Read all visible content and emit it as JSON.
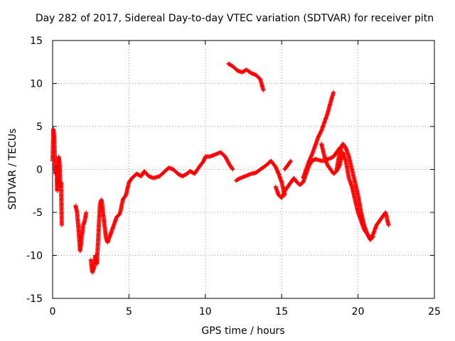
{
  "chart_data": {
    "type": "scatter",
    "title": "Day 282 of 2017, Sidereal Day-to-day VTEC variation (SDTVAR) for receiver pitn",
    "xlabel": "GPS time / hours",
    "ylabel": "SDTVAR / TECUs",
    "xlim": [
      0,
      25
    ],
    "ylim": [
      -15,
      15
    ],
    "xticks": [
      "0",
      "5",
      "10",
      "15",
      "20",
      "25"
    ],
    "yticks": [
      "-15",
      "-10",
      "-5",
      "0",
      "5",
      "10",
      "15"
    ],
    "grid": true,
    "marker": "+",
    "color": "#ff0000",
    "series": [
      {
        "x": [
          0.0,
          0.05,
          0.1,
          0.15,
          0.2,
          0.25,
          0.3,
          0.35,
          0.4,
          0.45,
          0.5,
          0.55,
          0.6
        ],
        "y": [
          1.0,
          4.7,
          3.8,
          1.0,
          -0.5,
          0.5,
          -2.5,
          -1.0,
          1.5,
          0.8,
          -2.0,
          -1.5,
          -6.5
        ]
      },
      {
        "x": [
          1.5,
          1.6,
          1.7,
          1.8,
          1.9,
          2.0,
          2.1,
          2.2
        ],
        "y": [
          -4.2,
          -5.0,
          -7.0,
          -9.5,
          -8.0,
          -6.5,
          -6.0,
          -5.0
        ]
      },
      {
        "x": [
          2.5,
          2.6,
          2.7,
          2.8,
          2.9,
          3.0,
          3.1,
          3.2,
          3.3,
          3.4,
          3.5,
          3.6,
          3.7,
          3.8
        ],
        "y": [
          -10.5,
          -12.0,
          -11.5,
          -10.0,
          -11.0,
          -7.5,
          -4.0,
          -3.5,
          -5.0,
          -6.5,
          -8.0,
          -8.5,
          -8.0,
          -7.5
        ]
      },
      {
        "x": [
          3.8,
          4.0,
          4.2,
          4.4,
          4.6,
          4.8,
          5.0,
          5.2,
          5.5,
          5.8,
          6.0,
          6.3,
          6.6,
          7.0,
          7.3,
          7.6,
          7.9,
          8.2,
          8.5,
          8.8,
          9.0,
          9.3,
          9.6,
          9.9,
          10.0,
          10.3,
          10.6,
          11.0,
          11.3,
          11.6,
          11.8
        ],
        "y": [
          -7.5,
          -6.5,
          -5.5,
          -5.2,
          -3.5,
          -3.0,
          -1.5,
          -1.0,
          -0.5,
          -0.8,
          -0.2,
          -0.8,
          -1.0,
          -0.8,
          -0.3,
          0.2,
          0.0,
          -0.5,
          -0.8,
          -0.5,
          -0.2,
          -0.5,
          0.3,
          1.0,
          1.5,
          1.5,
          1.7,
          2.0,
          1.5,
          0.5,
          0.0
        ]
      },
      {
        "x": [
          11.5,
          11.8,
          12.1,
          12.4,
          12.7,
          13.0,
          13.3,
          13.6,
          13.8
        ],
        "y": [
          12.3,
          12.0,
          11.5,
          11.3,
          11.6,
          11.2,
          11.0,
          10.5,
          9.2
        ]
      },
      {
        "x": [
          12.0,
          12.3,
          12.6,
          13.0,
          13.3,
          13.6,
          14.0,
          14.3,
          14.6,
          14.8,
          15.0,
          15.2
        ],
        "y": [
          -1.3,
          -1.0,
          -0.8,
          -0.5,
          -0.4,
          0.0,
          0.5,
          1.0,
          0.3,
          -0.5,
          -1.5,
          -3.0
        ]
      },
      {
        "x": [
          14.6,
          14.8,
          15.0,
          15.2,
          15.4,
          15.6,
          15.8,
          16.0,
          16.2,
          16.4,
          16.6,
          16.8,
          17.0,
          17.2,
          17.4,
          17.6,
          17.8,
          18.0,
          18.2,
          18.4,
          18.6,
          18.8,
          19.0
        ],
        "y": [
          -2.0,
          -3.0,
          -3.3,
          -2.5,
          -2.0,
          -1.5,
          -1.0,
          -1.5,
          -1.8,
          -1.5,
          -0.5,
          0.5,
          1.0,
          1.2,
          1.1,
          1.0,
          1.0,
          1.2,
          1.3,
          1.5,
          2.0,
          2.5,
          2.8
        ]
      },
      {
        "x": [
          15.2,
          15.4,
          15.6
        ],
        "y": [
          0.0,
          0.5,
          1.0
        ]
      },
      {
        "x": [
          16.4,
          16.6,
          16.8,
          17.0,
          17.2,
          17.4,
          17.6,
          17.8,
          18.0,
          18.2,
          18.4
        ],
        "y": [
          -1.0,
          0.0,
          1.0,
          1.8,
          2.8,
          3.8,
          4.5,
          5.5,
          6.5,
          7.8,
          9.0
        ]
      },
      {
        "x": [
          17.6,
          17.8,
          18.0,
          18.2,
          18.4,
          18.6,
          18.8,
          19.0,
          19.2,
          19.4,
          19.6,
          19.8,
          20.0,
          20.2,
          20.4,
          20.6,
          20.8,
          21.0,
          21.2,
          21.4,
          21.6,
          21.8,
          22.0
        ],
        "y": [
          3.0,
          1.5,
          0.5,
          0.0,
          -0.5,
          -0.2,
          0.5,
          2.0,
          1.0,
          -1.0,
          -2.0,
          -3.5,
          -5.0,
          -6.0,
          -7.0,
          -7.5,
          -8.0,
          -7.5,
          -6.5,
          -6.0,
          -5.5,
          -5.0,
          -6.5
        ]
      },
      {
        "x": [
          18.6,
          18.8,
          19.0,
          19.2,
          19.4,
          19.6,
          19.8,
          20.0,
          20.2,
          20.4,
          20.6,
          20.8,
          21.0
        ],
        "y": [
          0.0,
          2.0,
          3.0,
          2.5,
          1.5,
          0.0,
          -1.5,
          -3.0,
          -5.0,
          -6.5,
          -7.5,
          -8.2,
          -7.8
        ]
      }
    ]
  }
}
